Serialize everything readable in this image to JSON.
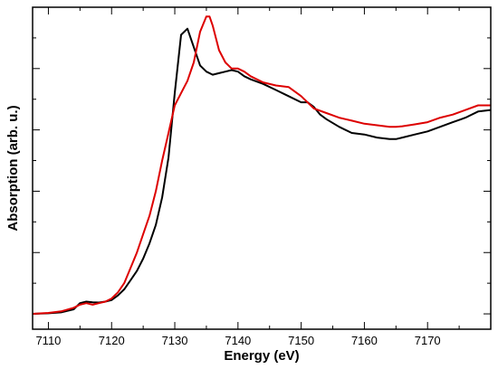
{
  "chart_data": {
    "type": "line",
    "title": "",
    "xlabel": "Energy (eV)",
    "ylabel": "Absorption (arb. u.)",
    "xlim": [
      7107.5,
      7180
    ],
    "ylim": [
      -0.05,
      1.0
    ],
    "x_ticks": [
      7110,
      7120,
      7130,
      7140,
      7150,
      7160,
      7170
    ],
    "x_tick_labels": [
      "7110",
      "7120",
      "7130",
      "7140",
      "7150",
      "7160",
      "7170"
    ],
    "y_ticks": [
      0,
      0.2,
      0.4,
      0.6,
      0.8,
      1.0
    ],
    "y_tick_labels_shown": false,
    "grid": false,
    "legend": "none",
    "series": [
      {
        "color": "#000000",
        "points": [
          [
            7107.5,
            0.0
          ],
          [
            7110,
            0.002
          ],
          [
            7112,
            0.005
          ],
          [
            7114,
            0.015
          ],
          [
            7115,
            0.035
          ],
          [
            7116,
            0.04
          ],
          [
            7117,
            0.038
          ],
          [
            7118,
            0.037
          ],
          [
            7119,
            0.04
          ],
          [
            7120,
            0.045
          ],
          [
            7121,
            0.06
          ],
          [
            7122,
            0.08
          ],
          [
            7123,
            0.11
          ],
          [
            7124,
            0.14
          ],
          [
            7125,
            0.18
          ],
          [
            7126,
            0.23
          ],
          [
            7127,
            0.29
          ],
          [
            7128,
            0.38
          ],
          [
            7129,
            0.51
          ],
          [
            7130,
            0.72
          ],
          [
            7131,
            0.91
          ],
          [
            7132,
            0.93
          ],
          [
            7133,
            0.87
          ],
          [
            7134,
            0.81
          ],
          [
            7135,
            0.79
          ],
          [
            7136,
            0.78
          ],
          [
            7137,
            0.785
          ],
          [
            7138,
            0.79
          ],
          [
            7139,
            0.795
          ],
          [
            7140,
            0.79
          ],
          [
            7141,
            0.775
          ],
          [
            7142,
            0.765
          ],
          [
            7144,
            0.75
          ],
          [
            7146,
            0.73
          ],
          [
            7148,
            0.71
          ],
          [
            7150,
            0.69
          ],
          [
            7151,
            0.69
          ],
          [
            7152,
            0.675
          ],
          [
            7153,
            0.65
          ],
          [
            7154,
            0.635
          ],
          [
            7156,
            0.61
          ],
          [
            7158,
            0.59
          ],
          [
            7160,
            0.585
          ],
          [
            7162,
            0.575
          ],
          [
            7164,
            0.57
          ],
          [
            7165,
            0.57
          ],
          [
            7166,
            0.575
          ],
          [
            7168,
            0.585
          ],
          [
            7170,
            0.595
          ],
          [
            7172,
            0.61
          ],
          [
            7174,
            0.625
          ],
          [
            7176,
            0.64
          ],
          [
            7178,
            0.66
          ],
          [
            7180,
            0.665
          ]
        ]
      },
      {
        "color": "#dd0000",
        "points": [
          [
            7107.5,
            0.0
          ],
          [
            7110,
            0.003
          ],
          [
            7112,
            0.008
          ],
          [
            7114,
            0.02
          ],
          [
            7115,
            0.03
          ],
          [
            7116,
            0.035
          ],
          [
            7117,
            0.03
          ],
          [
            7118,
            0.035
          ],
          [
            7119,
            0.04
          ],
          [
            7120,
            0.05
          ],
          [
            7121,
            0.07
          ],
          [
            7122,
            0.1
          ],
          [
            7123,
            0.15
          ],
          [
            7124,
            0.2
          ],
          [
            7125,
            0.26
          ],
          [
            7126,
            0.32
          ],
          [
            7127,
            0.4
          ],
          [
            7128,
            0.5
          ],
          [
            7129,
            0.59
          ],
          [
            7130,
            0.68
          ],
          [
            7131,
            0.72
          ],
          [
            7132,
            0.76
          ],
          [
            7133,
            0.82
          ],
          [
            7134,
            0.92
          ],
          [
            7135,
            0.97
          ],
          [
            7135.5,
            0.97
          ],
          [
            7136,
            0.94
          ],
          [
            7137,
            0.86
          ],
          [
            7138,
            0.82
          ],
          [
            7139,
            0.8
          ],
          [
            7140,
            0.8
          ],
          [
            7141,
            0.79
          ],
          [
            7142,
            0.775
          ],
          [
            7144,
            0.755
          ],
          [
            7146,
            0.745
          ],
          [
            7148,
            0.74
          ],
          [
            7150,
            0.71
          ],
          [
            7152,
            0.67
          ],
          [
            7154,
            0.655
          ],
          [
            7156,
            0.64
          ],
          [
            7158,
            0.63
          ],
          [
            7160,
            0.62
          ],
          [
            7162,
            0.615
          ],
          [
            7164,
            0.61
          ],
          [
            7165,
            0.61
          ],
          [
            7166,
            0.612
          ],
          [
            7168,
            0.618
          ],
          [
            7170,
            0.625
          ],
          [
            7172,
            0.64
          ],
          [
            7174,
            0.65
          ],
          [
            7176,
            0.665
          ],
          [
            7178,
            0.68
          ],
          [
            7180,
            0.68
          ]
        ]
      }
    ]
  }
}
